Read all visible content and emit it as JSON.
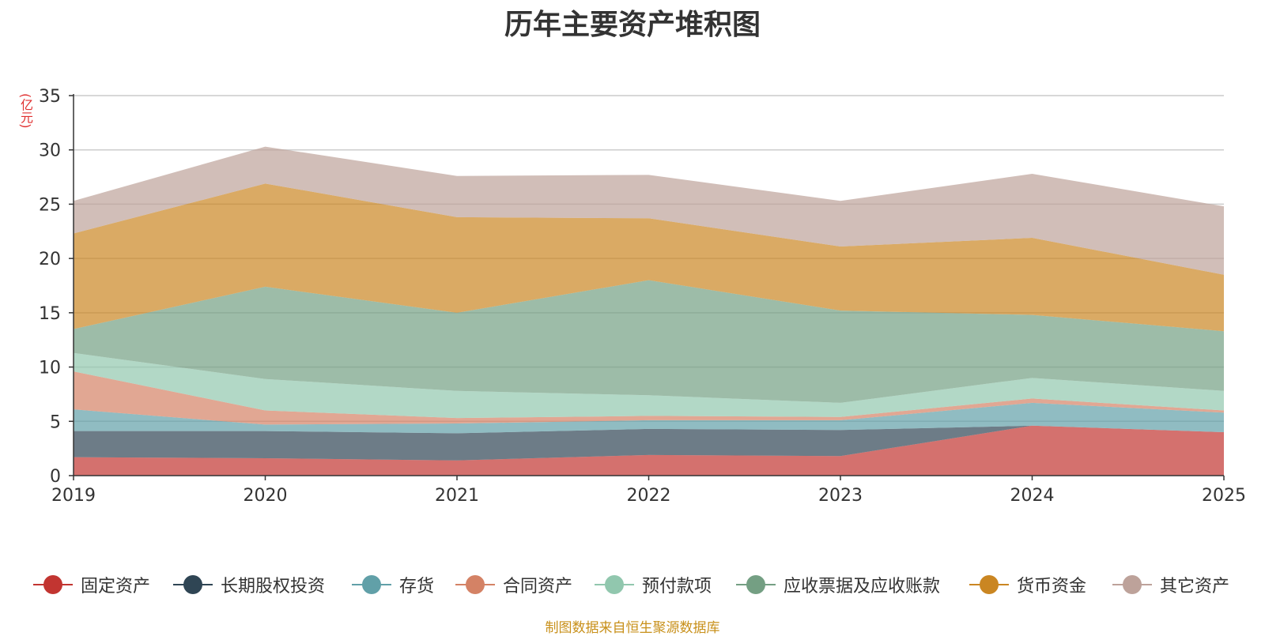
{
  "chart_data": {
    "type": "area",
    "stacked": true,
    "title": "历年主要资产堆积图",
    "ylabel": "(亿元)",
    "xlabel": "",
    "x": [
      "2019",
      "2020",
      "2021",
      "2022",
      "2023",
      "2024",
      "2025"
    ],
    "ylim": [
      0,
      35
    ],
    "yticks": [
      "0",
      "5",
      "10",
      "15",
      "20",
      "25",
      "30",
      "35"
    ],
    "grid": true,
    "legend_position": "bottom",
    "series": [
      {
        "name": "固定资产",
        "color": "#c23531",
        "values": [
          1.7,
          1.6,
          1.4,
          1.9,
          1.8,
          4.6,
          4.0
        ]
      },
      {
        "name": "长期股权投资",
        "color": "#2f4554",
        "values": [
          2.4,
          2.5,
          2.5,
          2.4,
          2.4,
          0.0,
          0.0
        ]
      },
      {
        "name": "存货",
        "color": "#61a0a8",
        "values": [
          2.0,
          0.6,
          0.9,
          0.8,
          0.9,
          2.1,
          1.8
        ]
      },
      {
        "name": "合同资产",
        "color": "#d48265",
        "values": [
          3.5,
          1.3,
          0.5,
          0.4,
          0.3,
          0.4,
          0.2
        ]
      },
      {
        "name": "预付款项",
        "color": "#91c7ae",
        "values": [
          1.7,
          2.9,
          2.5,
          1.9,
          1.3,
          1.9,
          1.8
        ]
      },
      {
        "name": "应收票据及应收账款",
        "color": "#749f83",
        "values": [
          2.2,
          8.5,
          7.2,
          10.6,
          8.5,
          5.8,
          5.5
        ]
      },
      {
        "name": "货币资金",
        "color": "#ca8622",
        "values": [
          8.8,
          9.5,
          8.8,
          5.7,
          5.9,
          7.1,
          5.2
        ]
      },
      {
        "name": "其它资产",
        "color": "#bda29a",
        "values": [
          3.0,
          3.4,
          3.8,
          4.0,
          4.2,
          5.9,
          6.3
        ]
      }
    ]
  },
  "source_text": "制图数据来自恒生聚源数据库"
}
